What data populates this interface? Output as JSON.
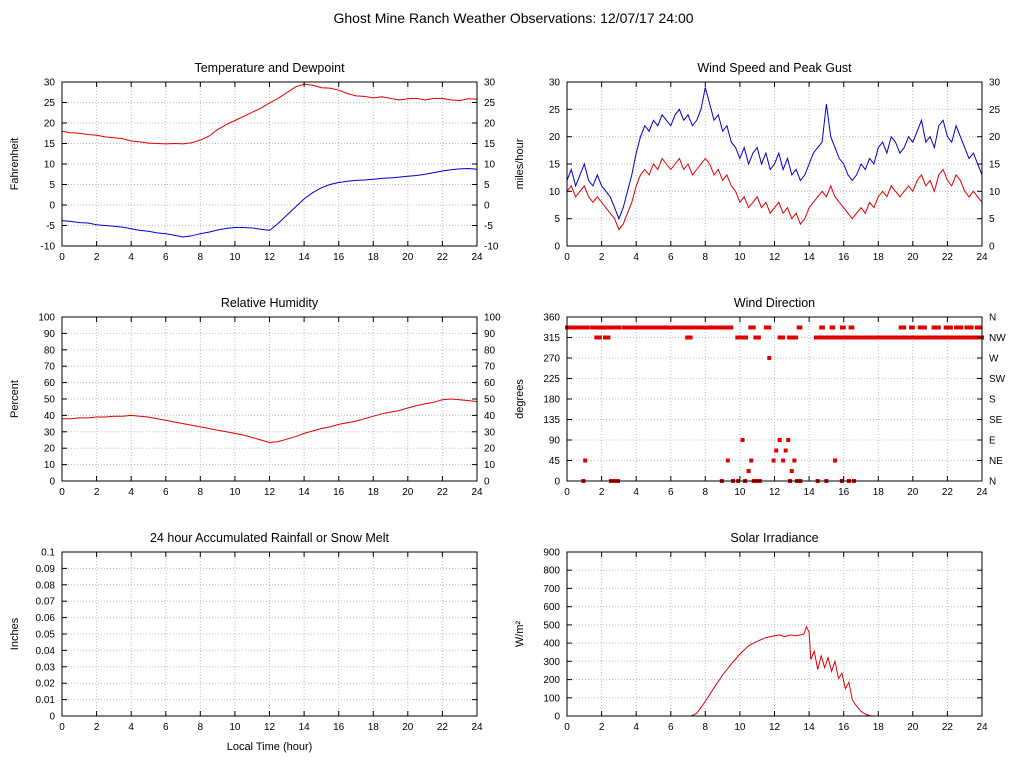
{
  "page_title": "Ghost Mine Ranch Weather Observations: 12/07/17 24:00",
  "colors": {
    "red": "#e00000",
    "blue": "#0000cc",
    "grid": "#bdbdbd",
    "axis": "#000000",
    "background": "#ffffff"
  },
  "chart_data": [
    {
      "id": "temperature-dewpoint",
      "type": "line",
      "title": "Temperature and Dewpoint",
      "ylabel": "Fahrenheit",
      "xlim": [
        0,
        24
      ],
      "ylim": [
        -10,
        30
      ],
      "xticks": [
        0,
        2,
        4,
        6,
        8,
        10,
        12,
        14,
        16,
        18,
        20,
        22,
        24
      ],
      "yticks": [
        -10,
        -5,
        0,
        5,
        10,
        15,
        20,
        25,
        30
      ],
      "mirror": true,
      "series": [
        {
          "name": "temperature",
          "color": "red",
          "x_start": 0,
          "x_step": 0.5,
          "y": [
            18,
            17.6,
            17.5,
            17.2,
            17,
            16.6,
            16.4,
            16.2,
            15.6,
            15.4,
            15.1,
            15,
            14.9,
            15,
            14.9,
            15.2,
            15.8,
            16.8,
            18.4,
            19.6,
            20.6,
            21.6,
            22.6,
            23.6,
            24.9,
            26,
            27.4,
            28.8,
            29.5,
            29.2,
            28.6,
            28.5,
            28,
            27.2,
            26.6,
            26.5,
            26.1,
            26.4,
            26,
            25.6,
            25.9,
            26,
            25.6,
            26,
            26,
            25.6,
            25.5,
            25.9,
            25.8
          ]
        },
        {
          "name": "dewpoint",
          "color": "blue",
          "x_start": 0,
          "x_step": 0.5,
          "y": [
            -3.8,
            -4,
            -4.3,
            -4.4,
            -4.8,
            -5,
            -5.2,
            -5.4,
            -5.8,
            -6.2,
            -6.4,
            -6.8,
            -7,
            -7.4,
            -7.8,
            -7.5,
            -7,
            -6.6,
            -6.1,
            -5.7,
            -5.5,
            -5.5,
            -5.6,
            -5.9,
            -6.2,
            -4.5,
            -2.5,
            -0.5,
            1.5,
            3,
            4.2,
            5,
            5.5,
            5.8,
            6,
            6.1,
            6.3,
            6.5,
            6.6,
            6.8,
            7,
            7.2,
            7.5,
            7.9,
            8.3,
            8.6,
            8.8,
            8.9,
            8.7
          ]
        }
      ]
    },
    {
      "id": "wind-speed-gust",
      "type": "line",
      "title": "Wind Speed and Peak Gust",
      "ylabel": "miles/hour",
      "xlim": [
        0,
        24
      ],
      "ylim": [
        0,
        30
      ],
      "xticks": [
        0,
        2,
        4,
        6,
        8,
        10,
        12,
        14,
        16,
        18,
        20,
        22,
        24
      ],
      "yticks": [
        0,
        5,
        10,
        15,
        20,
        25,
        30
      ],
      "mirror": true,
      "series": [
        {
          "name": "peak-gust",
          "color": "blue",
          "x_start": 0,
          "x_step": 0.25,
          "y": [
            12,
            14,
            11,
            13,
            15,
            12,
            11,
            13,
            11,
            10,
            9,
            7,
            5,
            7,
            10,
            13,
            17,
            20,
            22,
            21,
            23,
            22,
            24,
            23,
            22,
            24,
            25,
            23,
            24,
            22,
            23,
            25,
            29,
            26,
            23,
            24,
            21,
            22,
            19,
            18,
            16,
            18,
            15,
            17,
            18,
            15,
            17,
            14,
            15,
            17,
            14,
            16,
            13,
            14,
            12,
            13,
            15,
            17,
            18,
            19,
            26,
            20,
            18,
            16,
            15,
            13,
            12,
            13,
            15,
            14,
            16,
            15,
            18,
            19,
            17,
            20,
            19,
            17,
            18,
            20,
            19,
            21,
            23,
            19,
            20,
            18,
            22,
            23,
            20,
            19,
            22,
            20,
            18,
            16,
            17,
            15,
            13
          ]
        },
        {
          "name": "wind-speed",
          "color": "red",
          "x_start": 0,
          "x_step": 0.25,
          "y": [
            10,
            11,
            9,
            10,
            11,
            9,
            8,
            9,
            8,
            7,
            6,
            5,
            3,
            4,
            6,
            8,
            11,
            13,
            14,
            13,
            15,
            14,
            16,
            15,
            14,
            15,
            16,
            14,
            15,
            13,
            14,
            15,
            16,
            15,
            13,
            14,
            12,
            13,
            11,
            10,
            8,
            9,
            7,
            8,
            9,
            7,
            8,
            6,
            7,
            8,
            6,
            7,
            5,
            6,
            4,
            5,
            7,
            8,
            9,
            10,
            9,
            11,
            9,
            8,
            7,
            6,
            5,
            6,
            7,
            6,
            8,
            7,
            9,
            10,
            9,
            11,
            10,
            9,
            10,
            11,
            10,
            12,
            13,
            11,
            12,
            10,
            13,
            14,
            12,
            11,
            13,
            12,
            10,
            9,
            10,
            9,
            8
          ]
        }
      ]
    },
    {
      "id": "relative-humidity",
      "type": "line",
      "title": "Relative Humidity",
      "ylabel": "Percent",
      "xlim": [
        0,
        24
      ],
      "ylim": [
        0,
        100
      ],
      "xticks": [
        0,
        2,
        4,
        6,
        8,
        10,
        12,
        14,
        16,
        18,
        20,
        22,
        24
      ],
      "yticks": [
        0,
        10,
        20,
        30,
        40,
        50,
        60,
        70,
        80,
        90,
        100
      ],
      "mirror": true,
      "series": [
        {
          "name": "humidity",
          "color": "red",
          "x_start": 0,
          "x_step": 0.5,
          "y": [
            38,
            38,
            38.5,
            38.5,
            39,
            39,
            39.5,
            39.5,
            40,
            39.5,
            39,
            38,
            37,
            36,
            35,
            34,
            33,
            32,
            31,
            30,
            29,
            28,
            26.5,
            25,
            23.5,
            24,
            25.5,
            27,
            29,
            30.5,
            32,
            33,
            34.5,
            35.5,
            36.5,
            38,
            39.5,
            41,
            42,
            43,
            44.5,
            46,
            47,
            48,
            49.5,
            50,
            49.5,
            49,
            48.5
          ]
        }
      ]
    },
    {
      "id": "wind-direction",
      "type": "scatter",
      "title": "Wind Direction",
      "ylabel": "degrees",
      "color": "red",
      "xlim": [
        0,
        24
      ],
      "ylim": [
        0,
        360
      ],
      "xticks": [
        0,
        2,
        4,
        6,
        8,
        10,
        12,
        14,
        16,
        18,
        20,
        22,
        24
      ],
      "yticks": [
        0,
        45,
        90,
        135,
        180,
        225,
        270,
        315,
        360
      ],
      "mirror": false,
      "right_labels": [
        [
          360,
          "N"
        ],
        [
          315,
          "NW"
        ],
        [
          270,
          "W"
        ],
        [
          225,
          "SW"
        ],
        [
          180,
          "S"
        ],
        [
          135,
          "SE"
        ],
        [
          90,
          "E"
        ],
        [
          45,
          "NE"
        ],
        [
          0,
          "N"
        ]
      ],
      "bands": [
        {
          "deg": 337,
          "intervals": [
            [
              0,
              1.25
            ],
            [
              1.45,
              3.05
            ],
            [
              3.3,
              3.5
            ],
            [
              3.7,
              4.6
            ],
            [
              4.8,
              5.1
            ],
            [
              5.3,
              6.2
            ],
            [
              6.4,
              6.6
            ],
            [
              6.8,
              7.3
            ],
            [
              7.5,
              8.1
            ],
            [
              8.3,
              9.0
            ],
            [
              9.2,
              9.55
            ],
            [
              10.6,
              10.85
            ],
            [
              11.5,
              11.7
            ],
            [
              13.4,
              13.55
            ],
            [
              14.7,
              14.85
            ],
            [
              15.3,
              15.45
            ],
            [
              15.9,
              16.05
            ],
            [
              16.4,
              16.55
            ],
            [
              19.3,
              19.5
            ],
            [
              19.9,
              20.0
            ],
            [
              20.4,
              20.7
            ],
            [
              21.2,
              21.5
            ],
            [
              21.9,
              22.2
            ],
            [
              22.5,
              22.8
            ],
            [
              23.1,
              23.4
            ],
            [
              23.7,
              23.9
            ]
          ]
        },
        {
          "deg": 315,
          "intervals": [
            [
              1.7,
              1.95
            ],
            [
              2.2,
              2.45
            ],
            [
              6.95,
              7.15
            ],
            [
              9.85,
              10.4
            ],
            [
              10.9,
              11.15
            ],
            [
              12.3,
              12.55
            ],
            [
              12.85,
              13.25
            ],
            [
              14.4,
              24.0
            ]
          ]
        }
      ],
      "points": [
        [
          0.95,
          0
        ],
        [
          1.05,
          45
        ],
        [
          2.55,
          0
        ],
        [
          2.75,
          0
        ],
        [
          2.95,
          0
        ],
        [
          8.95,
          0
        ],
        [
          9.3,
          45
        ],
        [
          9.6,
          0
        ],
        [
          9.9,
          0
        ],
        [
          10.15,
          90
        ],
        [
          10.3,
          0
        ],
        [
          10.5,
          22
        ],
        [
          10.65,
          45
        ],
        [
          10.8,
          0
        ],
        [
          11.0,
          0
        ],
        [
          11.15,
          0
        ],
        [
          11.7,
          270
        ],
        [
          11.95,
          45
        ],
        [
          12.1,
          67
        ],
        [
          12.3,
          90
        ],
        [
          12.5,
          45
        ],
        [
          12.65,
          67
        ],
        [
          12.8,
          90
        ],
        [
          12.9,
          0
        ],
        [
          13.0,
          22
        ],
        [
          13.15,
          45
        ],
        [
          13.3,
          0
        ],
        [
          13.5,
          0
        ],
        [
          14.5,
          0
        ],
        [
          15.0,
          0
        ],
        [
          15.5,
          45
        ],
        [
          15.9,
          0
        ],
        [
          16.3,
          0
        ],
        [
          16.6,
          0
        ]
      ]
    },
    {
      "id": "rainfall",
      "type": "line",
      "title": "24 hour Accumulated Rainfall or Snow Melt",
      "ylabel": "Inches",
      "xlabel": "Local Time (hour)",
      "xlim": [
        0,
        24
      ],
      "ylim": [
        0,
        0.1
      ],
      "xticks": [
        0,
        2,
        4,
        6,
        8,
        10,
        12,
        14,
        16,
        18,
        20,
        22,
        24
      ],
      "yticks": [
        0,
        0.01,
        0.02,
        0.03,
        0.04,
        0.05,
        0.06,
        0.07,
        0.08,
        0.09,
        0.1
      ],
      "ytick_labels": [
        "0",
        "0.01",
        "0.02",
        "0.03",
        "0.04",
        "0.05",
        "0.06",
        "0.07",
        "0.08",
        "0.09",
        "0.1"
      ],
      "mirror": false,
      "series": [
        {
          "name": "accumulated-rainfall",
          "color": "red",
          "points": [
            [
              0,
              0
            ],
            [
              24,
              0
            ]
          ]
        }
      ]
    },
    {
      "id": "solar-irradiance",
      "type": "line",
      "title": "Solar Irradiance",
      "ylabel": "W/m²",
      "xlim": [
        0,
        24
      ],
      "ylim": [
        0,
        900
      ],
      "xticks": [
        0,
        2,
        4,
        6,
        8,
        10,
        12,
        14,
        16,
        18,
        20,
        22,
        24
      ],
      "yticks": [
        0,
        100,
        200,
        300,
        400,
        500,
        600,
        700,
        800,
        900
      ],
      "mirror": false,
      "series": [
        {
          "name": "solar-irradiance",
          "color": "red",
          "points": [
            [
              0,
              0
            ],
            [
              7.2,
              0
            ],
            [
              7.5,
              15
            ],
            [
              8,
              80
            ],
            [
              8.5,
              155
            ],
            [
              9,
              225
            ],
            [
              9.5,
              285
            ],
            [
              10,
              340
            ],
            [
              10.5,
              385
            ],
            [
              11,
              410
            ],
            [
              11.5,
              430
            ],
            [
              12,
              440
            ],
            [
              12.3,
              445
            ],
            [
              12.6,
              435
            ],
            [
              12.9,
              445
            ],
            [
              13.2,
              440
            ],
            [
              13.5,
              445
            ],
            [
              13.7,
              450
            ],
            [
              13.85,
              490
            ],
            [
              14,
              460
            ],
            [
              14.1,
              310
            ],
            [
              14.3,
              355
            ],
            [
              14.5,
              255
            ],
            [
              14.7,
              330
            ],
            [
              14.9,
              265
            ],
            [
              15.1,
              320
            ],
            [
              15.3,
              245
            ],
            [
              15.5,
              300
            ],
            [
              15.7,
              205
            ],
            [
              15.9,
              235
            ],
            [
              16.1,
              150
            ],
            [
              16.3,
              185
            ],
            [
              16.5,
              90
            ],
            [
              16.7,
              60
            ],
            [
              17,
              25
            ],
            [
              17.3,
              8
            ],
            [
              17.6,
              0
            ],
            [
              24,
              0
            ]
          ]
        }
      ]
    }
  ]
}
